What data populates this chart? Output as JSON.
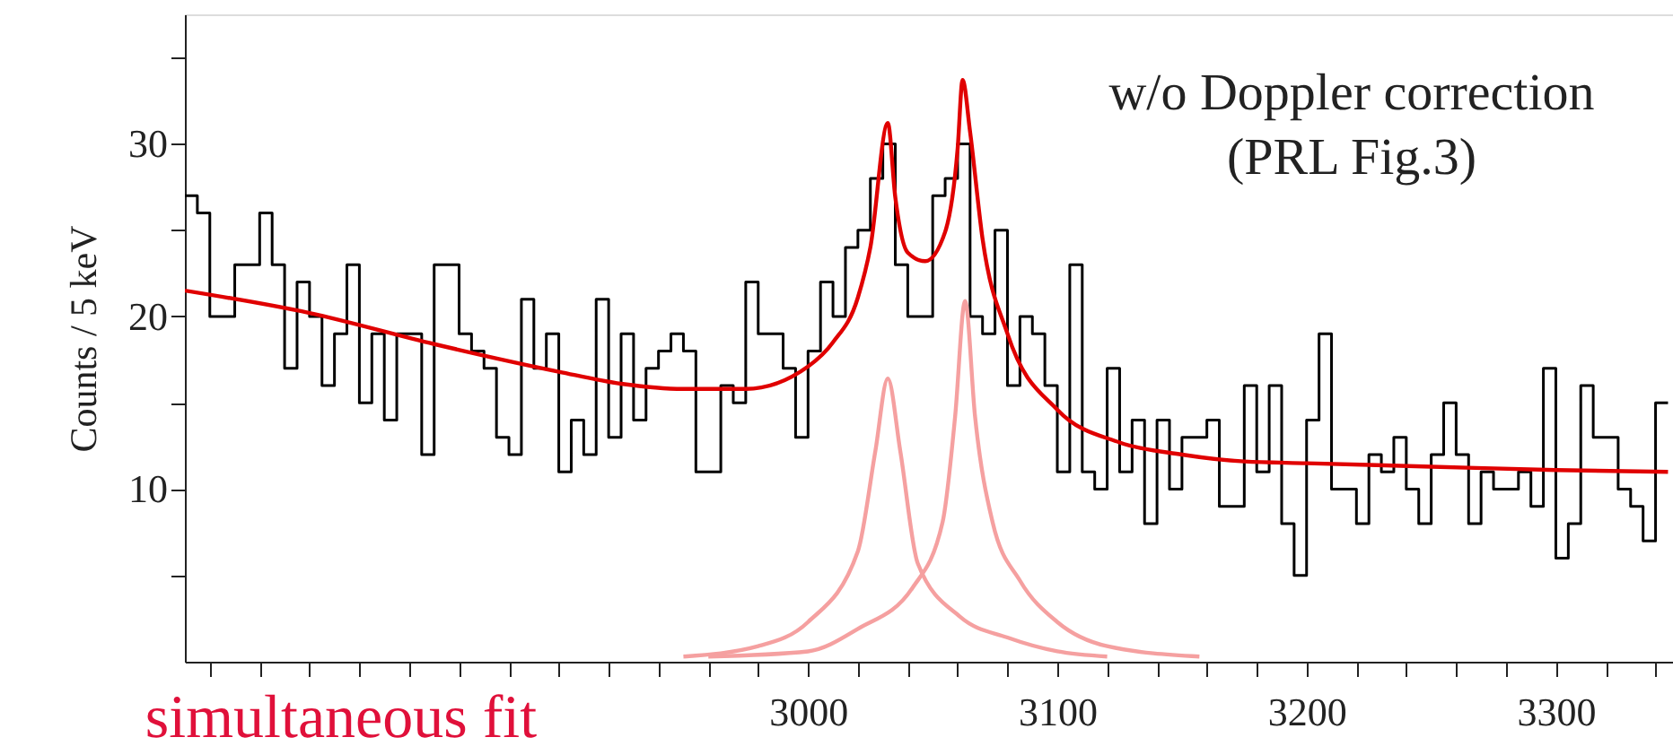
{
  "chart_data": {
    "type": "histogram",
    "ylabel": "Counts / 5 keV",
    "bins": [
      2750,
      2755,
      2760,
      2765,
      2770,
      2775,
      2780,
      2785,
      2790,
      2795,
      2800,
      2805,
      2810,
      2815,
      2820,
      2825,
      2830,
      2835,
      2840,
      2845,
      2850,
      2855,
      2860,
      2865,
      2870,
      2875,
      2880,
      2885,
      2890,
      2895,
      2900,
      2905,
      2910,
      2915,
      2920,
      2925,
      2930,
      2935,
      2940,
      2945,
      2950,
      2955,
      2960,
      2965,
      2970,
      2975,
      2980,
      2985,
      2990,
      2995,
      3000,
      3005,
      3010,
      3015,
      3020,
      3025,
      3030,
      3035,
      3040,
      3045,
      3050,
      3055,
      3060,
      3065,
      3070,
      3075,
      3080,
      3085,
      3090,
      3095,
      3100,
      3105,
      3110,
      3115,
      3120,
      3125,
      3130,
      3135,
      3140,
      3145,
      3150,
      3155,
      3160,
      3165,
      3170,
      3175,
      3180,
      3185,
      3190,
      3195,
      3200,
      3205,
      3210,
      3215,
      3220,
      3225,
      3230,
      3235,
      3240,
      3245,
      3250,
      3255,
      3260,
      3265,
      3270,
      3275,
      3280,
      3285,
      3290,
      3295,
      3300,
      3305,
      3310,
      3315,
      3320,
      3325,
      3330,
      3335,
      3340,
      3345
    ],
    "values": [
      27,
      26,
      20,
      20,
      23,
      23,
      26,
      23,
      17,
      22,
      20,
      16,
      19,
      23,
      15,
      19,
      14,
      19,
      19,
      12,
      23,
      23,
      19,
      18,
      17,
      13,
      12,
      21,
      17,
      19,
      11,
      14,
      12,
      21,
      13,
      19,
      14,
      17,
      18,
      19,
      18,
      11,
      11,
      16,
      15,
      22,
      19,
      19,
      17,
      13,
      18,
      22,
      20,
      24,
      25,
      28,
      30,
      23,
      20,
      20,
      27,
      28,
      30,
      20,
      19,
      25,
      16,
      20,
      19,
      16,
      11,
      23,
      11,
      10,
      17,
      11,
      14,
      8,
      14,
      10,
      13,
      13,
      14,
      9,
      9,
      16,
      11,
      16,
      8,
      5,
      14,
      19,
      10,
      10,
      8,
      12,
      11,
      13,
      10,
      8,
      12,
      15,
      12,
      8,
      11,
      10,
      10,
      11,
      9,
      17,
      6,
      8,
      16,
      13,
      13,
      10,
      9,
      7,
      15
    ],
    "color": "#000000",
    "series": [
      {
        "type": "line",
        "color": "#e00000",
        "x": [
          2750,
          2800,
          2850,
          2900,
          2925,
          2950,
          2975,
          3000,
          3010,
          3020,
          3025,
          3032,
          3035,
          3040,
          3047,
          3055,
          3060,
          3062,
          3065,
          3070,
          3080,
          3100,
          3125,
          3150,
          3175,
          3200,
          3250,
          3300,
          3345
        ],
        "values": [
          21.5,
          20.2,
          18.4,
          16.8,
          16.1,
          15.8,
          15.8,
          17.1,
          18.5,
          21.1,
          24,
          31.2,
          26.9,
          23.7,
          23.2,
          24.9,
          29.7,
          33.7,
          30.7,
          24.5,
          19.0,
          14.6,
          12.7,
          12.0,
          11.6,
          11.5,
          11.3,
          11.1,
          11.0
        ]
      },
      {
        "type": "line",
        "color": "#f5a0a0",
        "x": [
          2950,
          2980,
          3000,
          3020,
          3027,
          3032,
          3037,
          3044,
          3061,
          3080,
          3100,
          3120
        ],
        "values": [
          0.3,
          0.9,
          2.3,
          6.4,
          12.2,
          16.4,
          12.2,
          5.7,
          2.6,
          1.4,
          0.6,
          0.3
        ]
      },
      {
        "type": "line",
        "color": "#f5a0a0",
        "x": [
          2960,
          3000,
          3020,
          3042,
          3054,
          3059,
          3063,
          3067,
          3074,
          3085,
          3100,
          3120,
          3157
        ],
        "values": [
          0.3,
          0.6,
          1.9,
          4.3,
          8.1,
          14.2,
          20.9,
          14.2,
          8.1,
          4.7,
          2.3,
          0.9,
          0.3
        ]
      }
    ],
    "xlim": [
      2750,
      3347
    ],
    "ylim": [
      0,
      37.5
    ],
    "xticks": [
      {
        "value": 2760,
        "label": null
      },
      {
        "value": 2780,
        "label": null
      },
      {
        "value": 2800,
        "label": null
      },
      {
        "value": 2820,
        "label": null
      },
      {
        "value": 2840,
        "label": null
      },
      {
        "value": 2860,
        "label": null
      },
      {
        "value": 2880,
        "label": null
      },
      {
        "value": 2900,
        "label": null
      },
      {
        "value": 2920,
        "label": null
      },
      {
        "value": 2940,
        "label": null
      },
      {
        "value": 2960,
        "label": null
      },
      {
        "value": 2980,
        "label": null
      },
      3000,
      {
        "value": 3020,
        "label": null
      },
      {
        "value": 3040,
        "label": null
      },
      {
        "value": 3060,
        "label": null
      },
      {
        "value": 3080,
        "label": null
      },
      3100,
      {
        "value": 3120,
        "label": null
      },
      {
        "value": 3140,
        "label": null
      },
      {
        "value": 3160,
        "label": null
      },
      {
        "value": 3180,
        "label": null
      },
      3200,
      {
        "value": 3220,
        "label": null
      },
      {
        "value": 3240,
        "label": null
      },
      {
        "value": 3260,
        "label": null
      },
      {
        "value": 3280,
        "label": null
      },
      3300,
      {
        "value": 3320,
        "label": null
      },
      {
        "value": 3340,
        "label": null
      }
    ],
    "yticks": [
      {
        "value": 5,
        "label": null
      },
      10,
      {
        "value": 15,
        "label": null
      },
      20,
      {
        "value": 25,
        "label": null
      },
      30,
      {
        "value": 35,
        "label": null
      }
    ],
    "annotations": [
      "w/o Doppler correction",
      "(PRL Fig.3)",
      "simultaneous fit"
    ],
    "grid": false
  }
}
